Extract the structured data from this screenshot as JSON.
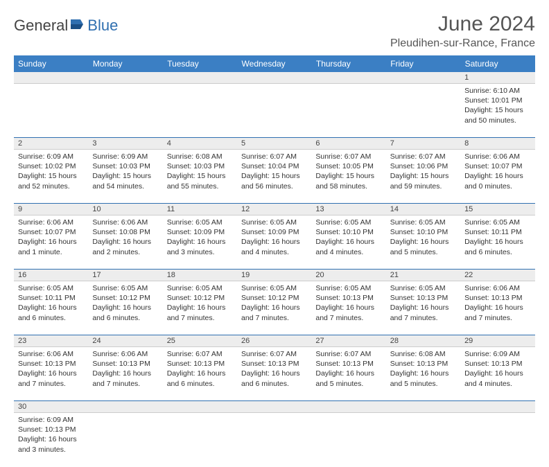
{
  "logo": {
    "part1": "General",
    "part2": "Blue"
  },
  "title": "June 2024",
  "location": "Pleudihen-sur-Rance, France",
  "header_bg": "#3b7fc4",
  "header_fg": "#ffffff",
  "daynum_bg": "#ededed",
  "rule_color": "#2f6fb0",
  "text_color": "#333333",
  "dayHeaders": [
    "Sunday",
    "Monday",
    "Tuesday",
    "Wednesday",
    "Thursday",
    "Friday",
    "Saturday"
  ],
  "weeks": [
    [
      null,
      null,
      null,
      null,
      null,
      null,
      {
        "n": "1",
        "sr": "Sunrise: 6:10 AM",
        "ss": "Sunset: 10:01 PM",
        "dl1": "Daylight: 15 hours",
        "dl2": "and 50 minutes."
      }
    ],
    [
      {
        "n": "2",
        "sr": "Sunrise: 6:09 AM",
        "ss": "Sunset: 10:02 PM",
        "dl1": "Daylight: 15 hours",
        "dl2": "and 52 minutes."
      },
      {
        "n": "3",
        "sr": "Sunrise: 6:09 AM",
        "ss": "Sunset: 10:03 PM",
        "dl1": "Daylight: 15 hours",
        "dl2": "and 54 minutes."
      },
      {
        "n": "4",
        "sr": "Sunrise: 6:08 AM",
        "ss": "Sunset: 10:03 PM",
        "dl1": "Daylight: 15 hours",
        "dl2": "and 55 minutes."
      },
      {
        "n": "5",
        "sr": "Sunrise: 6:07 AM",
        "ss": "Sunset: 10:04 PM",
        "dl1": "Daylight: 15 hours",
        "dl2": "and 56 minutes."
      },
      {
        "n": "6",
        "sr": "Sunrise: 6:07 AM",
        "ss": "Sunset: 10:05 PM",
        "dl1": "Daylight: 15 hours",
        "dl2": "and 58 minutes."
      },
      {
        "n": "7",
        "sr": "Sunrise: 6:07 AM",
        "ss": "Sunset: 10:06 PM",
        "dl1": "Daylight: 15 hours",
        "dl2": "and 59 minutes."
      },
      {
        "n": "8",
        "sr": "Sunrise: 6:06 AM",
        "ss": "Sunset: 10:07 PM",
        "dl1": "Daylight: 16 hours",
        "dl2": "and 0 minutes."
      }
    ],
    [
      {
        "n": "9",
        "sr": "Sunrise: 6:06 AM",
        "ss": "Sunset: 10:07 PM",
        "dl1": "Daylight: 16 hours",
        "dl2": "and 1 minute."
      },
      {
        "n": "10",
        "sr": "Sunrise: 6:06 AM",
        "ss": "Sunset: 10:08 PM",
        "dl1": "Daylight: 16 hours",
        "dl2": "and 2 minutes."
      },
      {
        "n": "11",
        "sr": "Sunrise: 6:05 AM",
        "ss": "Sunset: 10:09 PM",
        "dl1": "Daylight: 16 hours",
        "dl2": "and 3 minutes."
      },
      {
        "n": "12",
        "sr": "Sunrise: 6:05 AM",
        "ss": "Sunset: 10:09 PM",
        "dl1": "Daylight: 16 hours",
        "dl2": "and 4 minutes."
      },
      {
        "n": "13",
        "sr": "Sunrise: 6:05 AM",
        "ss": "Sunset: 10:10 PM",
        "dl1": "Daylight: 16 hours",
        "dl2": "and 4 minutes."
      },
      {
        "n": "14",
        "sr": "Sunrise: 6:05 AM",
        "ss": "Sunset: 10:10 PM",
        "dl1": "Daylight: 16 hours",
        "dl2": "and 5 minutes."
      },
      {
        "n": "15",
        "sr": "Sunrise: 6:05 AM",
        "ss": "Sunset: 10:11 PM",
        "dl1": "Daylight: 16 hours",
        "dl2": "and 6 minutes."
      }
    ],
    [
      {
        "n": "16",
        "sr": "Sunrise: 6:05 AM",
        "ss": "Sunset: 10:11 PM",
        "dl1": "Daylight: 16 hours",
        "dl2": "and 6 minutes."
      },
      {
        "n": "17",
        "sr": "Sunrise: 6:05 AM",
        "ss": "Sunset: 10:12 PM",
        "dl1": "Daylight: 16 hours",
        "dl2": "and 6 minutes."
      },
      {
        "n": "18",
        "sr": "Sunrise: 6:05 AM",
        "ss": "Sunset: 10:12 PM",
        "dl1": "Daylight: 16 hours",
        "dl2": "and 7 minutes."
      },
      {
        "n": "19",
        "sr": "Sunrise: 6:05 AM",
        "ss": "Sunset: 10:12 PM",
        "dl1": "Daylight: 16 hours",
        "dl2": "and 7 minutes."
      },
      {
        "n": "20",
        "sr": "Sunrise: 6:05 AM",
        "ss": "Sunset: 10:13 PM",
        "dl1": "Daylight: 16 hours",
        "dl2": "and 7 minutes."
      },
      {
        "n": "21",
        "sr": "Sunrise: 6:05 AM",
        "ss": "Sunset: 10:13 PM",
        "dl1": "Daylight: 16 hours",
        "dl2": "and 7 minutes."
      },
      {
        "n": "22",
        "sr": "Sunrise: 6:06 AM",
        "ss": "Sunset: 10:13 PM",
        "dl1": "Daylight: 16 hours",
        "dl2": "and 7 minutes."
      }
    ],
    [
      {
        "n": "23",
        "sr": "Sunrise: 6:06 AM",
        "ss": "Sunset: 10:13 PM",
        "dl1": "Daylight: 16 hours",
        "dl2": "and 7 minutes."
      },
      {
        "n": "24",
        "sr": "Sunrise: 6:06 AM",
        "ss": "Sunset: 10:13 PM",
        "dl1": "Daylight: 16 hours",
        "dl2": "and 7 minutes."
      },
      {
        "n": "25",
        "sr": "Sunrise: 6:07 AM",
        "ss": "Sunset: 10:13 PM",
        "dl1": "Daylight: 16 hours",
        "dl2": "and 6 minutes."
      },
      {
        "n": "26",
        "sr": "Sunrise: 6:07 AM",
        "ss": "Sunset: 10:13 PM",
        "dl1": "Daylight: 16 hours",
        "dl2": "and 6 minutes."
      },
      {
        "n": "27",
        "sr": "Sunrise: 6:07 AM",
        "ss": "Sunset: 10:13 PM",
        "dl1": "Daylight: 16 hours",
        "dl2": "and 5 minutes."
      },
      {
        "n": "28",
        "sr": "Sunrise: 6:08 AM",
        "ss": "Sunset: 10:13 PM",
        "dl1": "Daylight: 16 hours",
        "dl2": "and 5 minutes."
      },
      {
        "n": "29",
        "sr": "Sunrise: 6:09 AM",
        "ss": "Sunset: 10:13 PM",
        "dl1": "Daylight: 16 hours",
        "dl2": "and 4 minutes."
      }
    ],
    [
      {
        "n": "30",
        "sr": "Sunrise: 6:09 AM",
        "ss": "Sunset: 10:13 PM",
        "dl1": "Daylight: 16 hours",
        "dl2": "and 3 minutes."
      },
      null,
      null,
      null,
      null,
      null,
      null
    ]
  ]
}
